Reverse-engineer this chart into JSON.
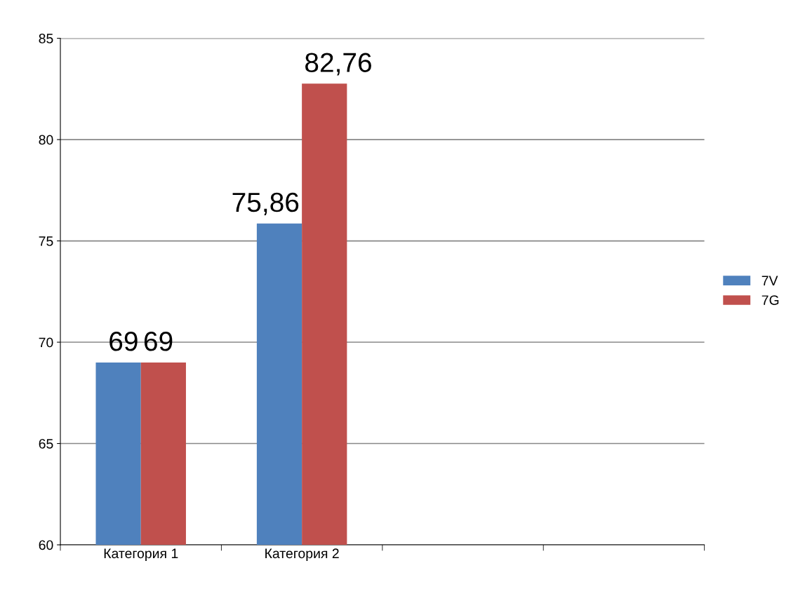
{
  "chart_data": {
    "type": "bar",
    "categories": [
      "Категория 1",
      "Категория 2",
      null,
      null
    ],
    "series": [
      {
        "name": "7V",
        "color": "#4f81bd",
        "values": [
          69,
          75.86,
          null,
          null
        ],
        "value_labels": [
          "69",
          "75,86",
          null,
          null
        ]
      },
      {
        "name": "7G",
        "color": "#c0504d",
        "values": [
          69,
          82.76,
          null,
          null
        ],
        "value_labels": [
          "69",
          "82,76",
          null,
          null
        ]
      }
    ],
    "ylim": [
      60,
      85
    ],
    "yticks": [
      60,
      65,
      70,
      75,
      80,
      85
    ],
    "grid": "y",
    "legend": "right"
  }
}
